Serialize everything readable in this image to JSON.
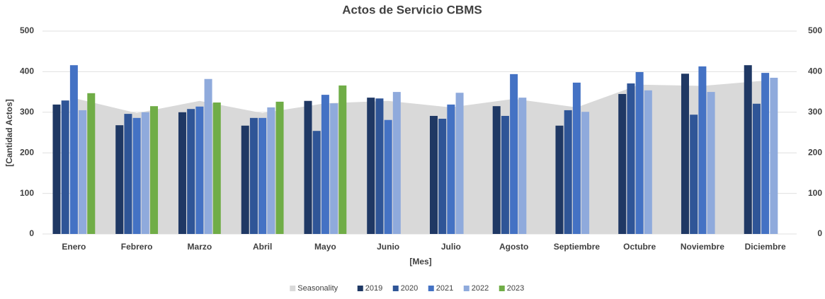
{
  "chart_data": {
    "type": "bar",
    "title": "Actos de Servicio CBMS",
    "x_label": "[Mes]",
    "y_label": "[Cantidad Actos]",
    "categories": [
      "Enero",
      "Febrero",
      "Marzo",
      "Abril",
      "Mayo",
      "Junio",
      "Julio",
      "Agosto",
      "Septiembre",
      "Octubre",
      "Noviembre",
      "Diciembre"
    ],
    "series": [
      {
        "name": "Seasonality",
        "type": "area",
        "axis": "y2",
        "color": "#d9d9d9",
        "values": [
          335,
          298,
          328,
          298,
          322,
          328,
          312,
          333,
          312,
          368,
          365,
          378
        ]
      },
      {
        "name": "2019",
        "color": "#1f3864",
        "values": [
          319,
          268,
          300,
          267,
          328,
          336,
          291,
          315,
          267,
          345,
          395,
          416
        ]
      },
      {
        "name": "2020",
        "color": "#2f5597",
        "values": [
          329,
          296,
          308,
          286,
          254,
          334,
          284,
          291,
          305,
          371,
          294,
          321
        ]
      },
      {
        "name": "2021",
        "color": "#4472c4",
        "values": [
          416,
          286,
          314,
          286,
          343,
          281,
          319,
          394,
          373,
          399,
          413,
          397
        ]
      },
      {
        "name": "2022",
        "color": "#8faadc",
        "values": [
          305,
          300,
          382,
          312,
          322,
          350,
          348,
          336,
          301,
          354,
          350,
          385
        ]
      },
      {
        "name": "2023",
        "color": "#70ad47",
        "values": [
          347,
          315,
          324,
          326,
          366,
          null,
          null,
          null,
          null,
          null,
          null,
          null
        ]
      }
    ],
    "ylim": [
      0,
      500
    ],
    "yticks": [
      0,
      100,
      200,
      300,
      400,
      500
    ],
    "y2lim": [
      0,
      500
    ],
    "y2ticks": [
      0,
      100,
      200,
      300,
      400,
      500
    ],
    "grid": true,
    "legend": "bottom"
  }
}
